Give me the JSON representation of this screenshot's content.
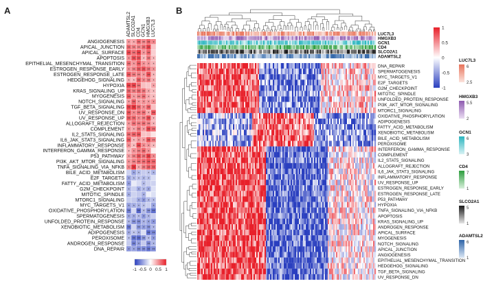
{
  "panelA": {
    "label": "A",
    "columns": [
      "ADAMTSL2",
      "SLCO2A1",
      "CD4",
      "GCN1",
      "HMGXB3",
      "LUC7L3"
    ],
    "rows": [
      "ANGIOGENESIS",
      "APICAL_JUNCTION",
      "APICAL_SURFACE",
      "APOPTOSIS",
      "EPITHELIAL_MESENCHYMAL_TRANSITION",
      "ESTROGEN_RESPONSE_EARLY",
      "ESTROGEN_RESPONSE_LATE",
      "HEDGEHOG_SIGNALING",
      "HYPOXIA",
      "KRAS_SIGNALING_UP",
      "MYOGENESIS",
      "NOTCH_SIGNALING",
      "TGF_BETA_SIGNALING",
      "UV_RESPONSE_DN",
      "UV_RESPONSE_UP",
      "ALLOGRAFT_REJECTION",
      "COMPLEMENT",
      "IL2_STAT5_SIGNALING",
      "IL6_JAK_STAT3_SIGNALING",
      "INFLAMMATORY_RESPONSE",
      "INTERFERON_GAMMA_RESPONSE",
      "P53_PATHWAY",
      "PI3K_AKT_MTOR_SIGNALING",
      "TNFA_SIGNALING_VIA_NFKB",
      "BILE_ACID_METABOLISM",
      "E2F_TARGETS",
      "FATTY_ACID_METABOLISM",
      "G2M_CHECKPOINT",
      "MITOTIC_SPINDLE",
      "MTORC1_SIGNALING",
      "MYC_TARGETS_V1",
      "OXIDATIVE_PHOSPHORYLATION",
      "SPERMATOGENESIS",
      "UNFOLDED_PROTEIN_RESPONSE",
      "XENOBIOTIC_METABOLISM",
      "ADIPOGENESIS",
      "PEROXISOME",
      "ANDROGEN_RESPONSE",
      "DNA_REPAIR"
    ],
    "colorbar_ticks": [
      "-1",
      "-0.5",
      "0",
      "0.5",
      "1"
    ]
  },
  "panelB": {
    "label": "B",
    "tracks": [
      "LUC7L3",
      "HMGXB3",
      "GCN1",
      "CD4",
      "SLCO2A1",
      "ADAMTSL2"
    ],
    "rows": [
      "DNA_REPAIR",
      "SPERMATOGENESIS",
      "MYC_TARGETS_V1",
      "E2F_TARGETS",
      "G2M_CHECKPOINT",
      "MITOTIC_SPINDLE",
      "UNFOLDED_PROTEIN_RESPONSE",
      "PI3K_AKT_MTOR_SIGNALING",
      "MTORC1_SIGNALING",
      "OXIDATIVE_PHOSPHORYLATION",
      "ADIPOGENESIS",
      "FATTY_ACID_METABOLISM",
      "XENOBIOTIC_METABOLISM",
      "BILE_ACID_METABOLISM",
      "PEROXISOME",
      "INTERFERON_GAMMA_RESPONSE",
      "COMPLEMENT",
      "IL2_STAT5_SIGNALING",
      "ALLOGRAFT_REJECTION",
      "IL6_JAK_STAT3_SIGNALING",
      "INFLAMMATORY_RESPONSE",
      "UV_RESPONSE_UP",
      "ESTROGEN_RESPONSE_EARLY",
      "ESTROGEN_RESPONSE_LATE",
      "P53_PATHWAY",
      "HYPOXIA",
      "TNFA_SIGNALING_VIA_NFKB",
      "APOPTOSIS",
      "KRAS_SIGNALING_UP",
      "ANDROGEN_RESPONSE",
      "APICAL_SURFACE",
      "MYOGENESIS",
      "NOTCH_SIGNALING",
      "APICAL_JUNCTION",
      "ANGIOGENESIS",
      "EPITHELIAL_MESENCHYMAL_TRANSITION",
      "HEDGEHOG_SIGNALING",
      "TGF_BETA_SIGNALING",
      "UV_RESPONSE_DN"
    ],
    "colorbar_ticks": [
      "1",
      "0.5",
      "0",
      "-0.5",
      "-1"
    ],
    "legends": [
      {
        "name": "LUC7L3",
        "max": "6",
        "min": "2.5",
        "hi": "#e8735a",
        "lo": "#fbe3dc"
      },
      {
        "name": "HMGXB3",
        "max": "5.5",
        "min": "2",
        "hi": "#8e5bb0",
        "lo": "#eadcf2"
      },
      {
        "name": "GCN1",
        "max": "6",
        "min": "3",
        "hi": "#2bb5bf",
        "lo": "#d8f2f4"
      },
      {
        "name": "CD4",
        "max": "7",
        "min": "1",
        "hi": "#2e9e3e",
        "lo": "#d9f0dc"
      },
      {
        "name": "SLCO2A1",
        "max": "5",
        "min": "1",
        "hi": "#1a1a1a",
        "lo": "#e6e6e6"
      },
      {
        "name": "ADAMTSL2",
        "max": "6",
        "min": "1",
        "hi": "#2e64a8",
        "lo": "#dce8f5"
      }
    ]
  }
}
